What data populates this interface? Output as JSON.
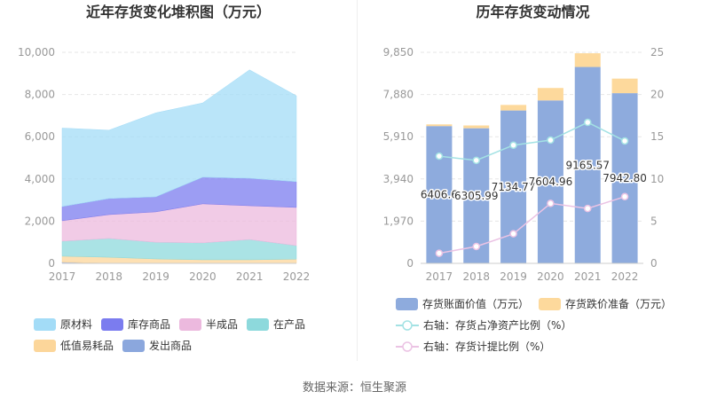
{
  "chart_data": [
    {
      "type": "area",
      "stacked": true,
      "title": "近年存货变化堆积图（万元）",
      "x": [
        "2017",
        "2018",
        "2019",
        "2020",
        "2021",
        "2022"
      ],
      "ylim": [
        0,
        10000
      ],
      "yticks": [
        "0",
        "2,000",
        "4,000",
        "6,000",
        "8,000",
        "10,000"
      ],
      "grid": true,
      "legend_position": "bottom",
      "series": [
        {
          "name": "原材料",
          "color": "#a3dcf7",
          "values": [
            3720,
            3240,
            3980,
            3520,
            5140,
            4070
          ]
        },
        {
          "name": "库存商品",
          "color": "#7b7cef",
          "values": [
            670,
            760,
            710,
            1260,
            1300,
            1220
          ]
        },
        {
          "name": "半成品",
          "color": "#ecb9de",
          "values": [
            970,
            1130,
            1440,
            1850,
            1600,
            1810
          ]
        },
        {
          "name": "在产品",
          "color": "#8dd9dc",
          "values": [
            710,
            890,
            790,
            800,
            960,
            640
          ]
        },
        {
          "name": "低值易耗品",
          "color": "#fcd69a",
          "values": [
            280,
            290,
            210,
            170,
            170,
            200
          ]
        },
        {
          "name": "发出商品",
          "color": "#8ba7dd",
          "values": [
            60,
            0,
            0,
            0,
            0,
            0
          ]
        }
      ]
    },
    {
      "type": "bar",
      "stacked": true,
      "title": "历年存货变动情况",
      "categories": [
        "2017",
        "2018",
        "2019",
        "2020",
        "2021",
        "2022"
      ],
      "ylim": [
        0,
        9850
      ],
      "yticks": [
        "0",
        "1,970",
        "3,940",
        "5,910",
        "7,880",
        "9,850"
      ],
      "y2lim": [
        0,
        25
      ],
      "y2ticks": [
        "0",
        "5",
        "10",
        "15",
        "20",
        "25"
      ],
      "grid": true,
      "legend_position": "bottom",
      "series": [
        {
          "name": "存货账面价值（万元）",
          "type": "bar",
          "color": "#8eabdd",
          "values": [
            6406.6,
            6305.99,
            7134.77,
            7604.96,
            9165.57,
            7942.8
          ],
          "labels": [
            "6406.6",
            "6305.99",
            "7134.77",
            "7604.96",
            "9165.57",
            "7942.80"
          ]
        },
        {
          "name": "存货跌价准备（万元）",
          "type": "bar",
          "color": "#fdd99c",
          "values": [
            80,
            130,
            260,
            580,
            640,
            680
          ]
        },
        {
          "name": "右轴：存货占净资产比例（%）",
          "type": "line",
          "axis": "right",
          "color": "#a3e2e4",
          "values": [
            12.7,
            12.2,
            14.0,
            14.6,
            16.7,
            14.5
          ]
        },
        {
          "name": "右轴：存货计提比例（%）",
          "type": "line",
          "axis": "right",
          "color": "#ebc3e4",
          "values": [
            1.2,
            2.0,
            3.5,
            7.1,
            6.5,
            7.9
          ]
        }
      ]
    }
  ],
  "footer": {
    "source": "数据来源：恒生聚源"
  }
}
